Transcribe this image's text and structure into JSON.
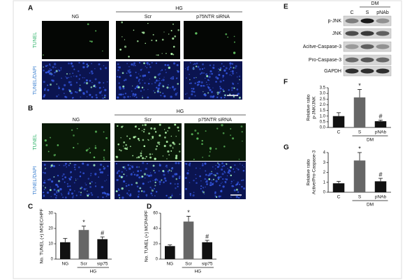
{
  "panel_letters": [
    "A",
    "B",
    "C",
    "D",
    "E",
    "F",
    "G"
  ],
  "panel_a": {
    "group": "HG",
    "columns": [
      "NG",
      "Scr",
      "p75NTR siRNA"
    ],
    "rows": [
      "TUNEL",
      "TUNEL/DAPI"
    ]
  },
  "panel_b": {
    "group": "HG",
    "columns": [
      "NG",
      "Scr",
      "p75NTR siRNA"
    ],
    "rows": [
      "TUNEL",
      "TUNEL/DAPI"
    ]
  },
  "panel_e": {
    "group": "DM",
    "lanes": [
      "C",
      "S",
      "pNAb"
    ],
    "rows": [
      "p-JNK",
      "JNK",
      "Acitve-Caspase-3",
      "Pro-Caspase-3",
      "GAPDH"
    ]
  },
  "chart_data": [
    {
      "type": "bar",
      "ylabel": [
        "No. TUNEL (+) MOEC/HPF"
      ],
      "categories": [
        "NG",
        "Scr",
        "sip75"
      ],
      "values": [
        11,
        19,
        13
      ],
      "errors": [
        2.5,
        2.5,
        1.5
      ],
      "colors": [
        "#111111",
        "#666666",
        "#111111"
      ],
      "annotations": {
        "Scr": "*",
        "sip75": "#"
      },
      "group": {
        "label": "HG",
        "from": "Scr",
        "to": "sip75"
      },
      "ylim": [
        0,
        30
      ],
      "yticks": [
        0,
        10,
        20,
        30
      ]
    },
    {
      "type": "bar",
      "ylabel": [
        "No. TUNEL (+) MCP/HPF"
      ],
      "categories": [
        "NG",
        "Scr",
        "sip75"
      ],
      "values": [
        17,
        49,
        22
      ],
      "errors": [
        1.5,
        7,
        2.5
      ],
      "colors": [
        "#111111",
        "#666666",
        "#111111"
      ],
      "annotations": {
        "Scr": "*",
        "sip75": "#"
      },
      "group": {
        "label": "HG",
        "from": "Scr",
        "to": "sip75"
      },
      "ylim": [
        0,
        60
      ],
      "yticks": [
        0,
        20,
        40,
        60
      ]
    },
    {
      "type": "bar",
      "ylabel": [
        "Relative ratio",
        "p-JNK/JNK"
      ],
      "categories": [
        "C",
        "S",
        "pNAb"
      ],
      "values": [
        1.0,
        2.65,
        0.55
      ],
      "errors": [
        0.3,
        0.7,
        0.1
      ],
      "colors": [
        "#111111",
        "#666666",
        "#111111"
      ],
      "annotations": {
        "S": "*",
        "pNAb": "#"
      },
      "group": {
        "label": "DM",
        "from": "S",
        "to": "pNAb"
      },
      "ylim": [
        0,
        3.5
      ],
      "yticks": [
        {
          "value": 0,
          "label": "0.0"
        },
        0.5,
        {
          "value": 1,
          "label": "1.0"
        },
        1.5,
        {
          "value": 2,
          "label": "2.0"
        },
        2.5,
        {
          "value": 3,
          "label": "3.0"
        },
        3.5
      ]
    },
    {
      "type": "bar",
      "ylabel": [
        "Relative ratio",
        "Active/Pro-Caspase-3"
      ],
      "categories": [
        "C",
        "S",
        "pNAb"
      ],
      "values": [
        0.9,
        3.2,
        1.1
      ],
      "errors": [
        0.2,
        0.8,
        0.3
      ],
      "colors": [
        "#111111",
        "#666666",
        "#111111"
      ],
      "annotations": {
        "S": "*",
        "pNAb": "#"
      },
      "group": {
        "label": "DM",
        "from": "S",
        "to": "pNAb"
      },
      "ylim": [
        0,
        4
      ],
      "yticks": [
        0,
        1,
        2,
        3,
        4
      ]
    }
  ]
}
